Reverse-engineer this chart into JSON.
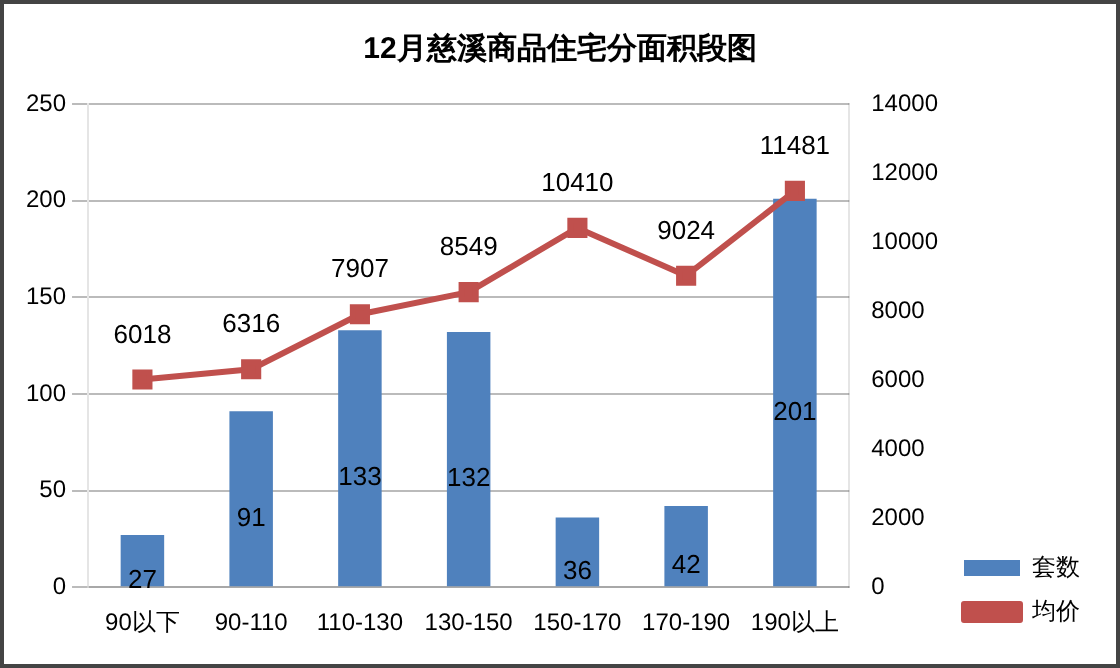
{
  "chart_data": {
    "type": "bar",
    "title": "12月慈溪商品住宅分面积段图",
    "categories": [
      "90以下",
      "90-110",
      "110-130",
      "130-150",
      "150-170",
      "170-190",
      "190以上"
    ],
    "series": [
      {
        "name": "套数",
        "color": "#4f81bd",
        "values": [
          27,
          91,
          133,
          132,
          36,
          42,
          201
        ]
      },
      {
        "name": "均价",
        "type": "line",
        "axis": "y2",
        "color": "#c0504d",
        "marker": "square",
        "values": [
          6018,
          6316,
          7907,
          8549,
          10410,
          9024,
          11481
        ]
      }
    ],
    "ylim": [
      0,
      250
    ],
    "yticks": [
      0,
      50,
      100,
      150,
      200,
      250
    ],
    "y2lim": [
      0,
      14000
    ],
    "y2ticks": [
      0,
      2000,
      4000,
      6000,
      8000,
      10000,
      12000,
      14000
    ],
    "grid": "y",
    "legend": "bottom right",
    "data_labels": true
  }
}
